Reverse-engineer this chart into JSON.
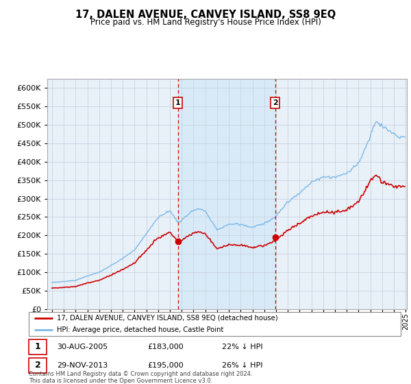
{
  "title": "17, DALEN AVENUE, CANVEY ISLAND, SS8 9EQ",
  "subtitle": "Price paid vs. HM Land Registry's House Price Index (HPI)",
  "hpi_color": "#7ab8e8",
  "price_color": "#cc0000",
  "shade_color": "#d8eaf8",
  "plot_bg": "#e8f0f8",
  "ylim": [
    0,
    625000
  ],
  "yticks": [
    0,
    50000,
    100000,
    150000,
    200000,
    250000,
    300000,
    350000,
    400000,
    450000,
    500000,
    550000,
    600000
  ],
  "sale1_date": "30-AUG-2005",
  "sale1_price": 183000,
  "sale1_pct": "22%",
  "sale1_year": 2005.67,
  "sale2_date": "29-NOV-2013",
  "sale2_price": 195000,
  "sale2_pct": "26%",
  "sale2_year": 2013.92,
  "legend_line1": "17, DALEN AVENUE, CANVEY ISLAND, SS8 9EQ (detached house)",
  "legend_line2": "HPI: Average price, detached house, Castle Point",
  "footnote": "Contains HM Land Registry data © Crown copyright and database right 2024.\nThis data is licensed under the Open Government Licence v3.0.",
  "xlim_left": 1994.6,
  "xlim_right": 2025.1
}
